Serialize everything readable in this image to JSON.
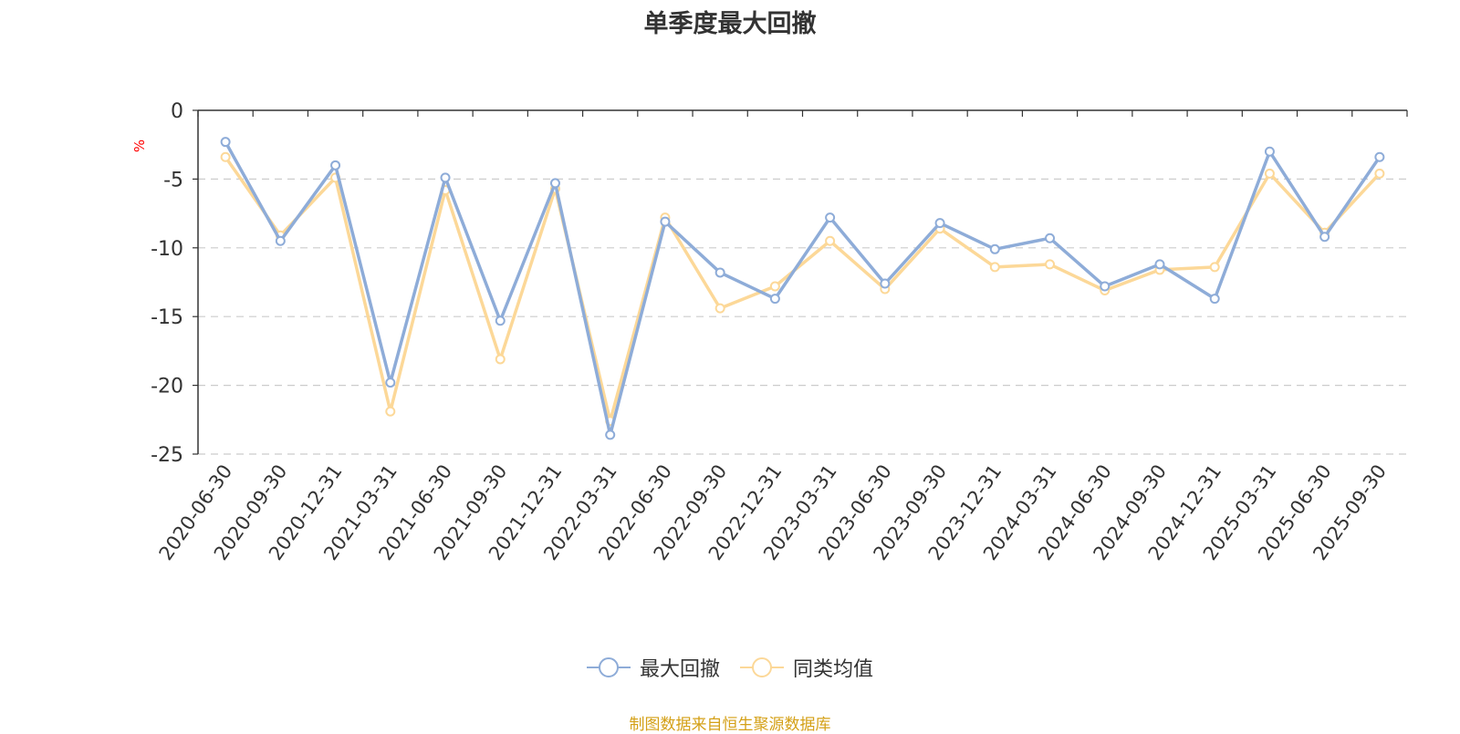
{
  "chart_data": {
    "type": "line",
    "title": "单季度最大回撤",
    "ylabel": "%",
    "ylim": [
      -25,
      0
    ],
    "yticks": [
      0,
      -5,
      -10,
      -15,
      -20,
      -25
    ],
    "grid": true,
    "legend_position": "bottom",
    "categories": [
      "2020-06-30",
      "2020-09-30",
      "2020-12-31",
      "2021-03-31",
      "2021-06-30",
      "2021-09-30",
      "2021-12-31",
      "2022-03-31",
      "2022-06-30",
      "2022-09-30",
      "2022-12-31",
      "2023-03-31",
      "2023-06-30",
      "2023-09-30",
      "2023-12-31",
      "2024-03-31",
      "2024-06-30",
      "2024-09-30",
      "2024-12-31",
      "2025-03-31",
      "2025-06-30",
      "2025-09-30"
    ],
    "series": [
      {
        "name": "最大回撤",
        "color": "#8eacd8",
        "values": [
          -2.3,
          -9.5,
          -4.0,
          -19.8,
          -4.9,
          -15.3,
          -5.3,
          -23.6,
          -8.1,
          -11.8,
          -13.7,
          -7.8,
          -12.6,
          -8.2,
          -10.1,
          -9.3,
          -12.8,
          -11.2,
          -13.7,
          -3.0,
          -9.2,
          -3.4
        ]
      },
      {
        "name": "同类均值",
        "color": "#fcd898",
        "values": [
          -3.4,
          -9.1,
          -4.9,
          -21.9,
          -5.8,
          -18.1,
          -5.7,
          -22.6,
          -7.8,
          -14.4,
          -12.8,
          -9.5,
          -13.0,
          -8.6,
          -11.4,
          -11.2,
          -13.1,
          -11.6,
          -11.4,
          -4.6,
          -8.9,
          -4.6
        ]
      }
    ]
  },
  "footer": {
    "source_note": "制图数据来自恒生聚源数据库"
  }
}
